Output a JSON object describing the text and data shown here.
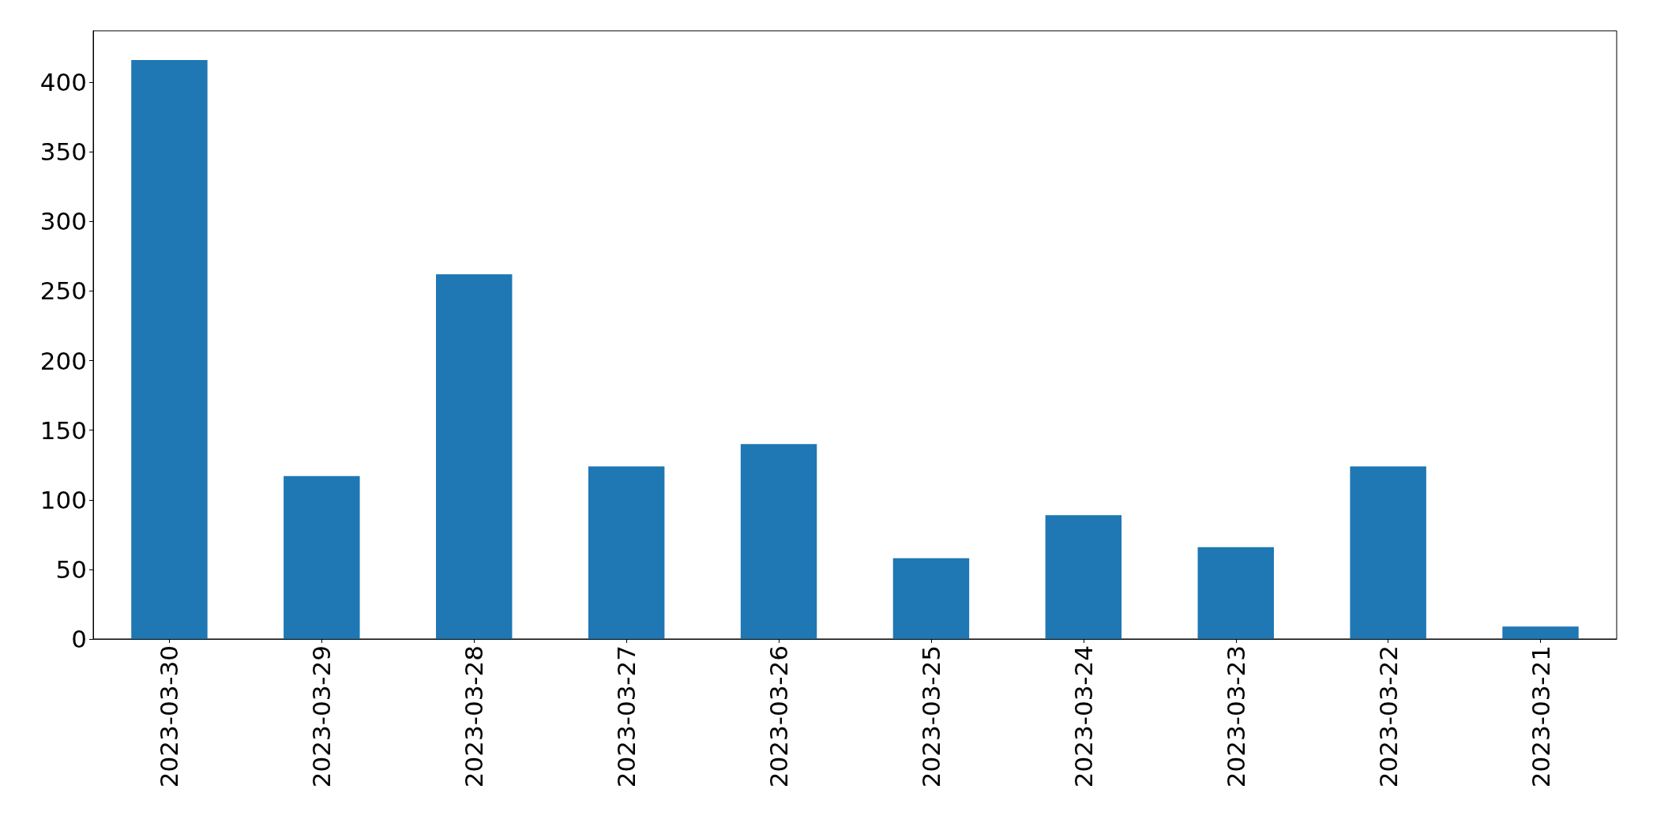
{
  "chart_data": {
    "type": "bar",
    "categories": [
      "2023-03-30",
      "2023-03-29",
      "2023-03-28",
      "2023-03-27",
      "2023-03-26",
      "2023-03-25",
      "2023-03-24",
      "2023-03-23",
      "2023-03-22",
      "2023-03-21"
    ],
    "values": [
      416,
      117,
      262,
      124,
      140,
      58,
      89,
      66,
      124,
      9
    ],
    "color": "#1f77b4",
    "ylim": [
      0,
      437
    ],
    "yticks": [
      0,
      50,
      100,
      150,
      200,
      250,
      300,
      350,
      400
    ],
    "grid": false
  }
}
